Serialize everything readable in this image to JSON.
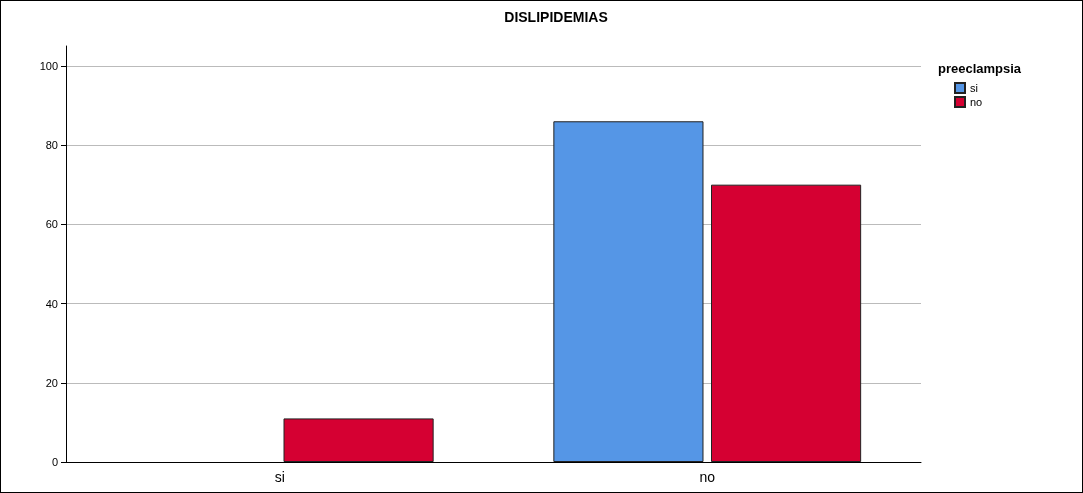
{
  "chart_data": {
    "type": "bar",
    "title": "DISLIPIDEMIAS",
    "legend_title": "preeclampsia",
    "categories": [
      "si",
      "no"
    ],
    "series": [
      {
        "name": "si",
        "color": "#5596e6",
        "values": [
          null,
          86
        ]
      },
      {
        "name": "no",
        "color": "#d50032",
        "values": [
          11,
          70
        ]
      }
    ],
    "ylim": [
      0,
      105
    ],
    "yticks": [
      0,
      20,
      40,
      60,
      80,
      100
    ],
    "grid": "y",
    "legend": "top right"
  }
}
